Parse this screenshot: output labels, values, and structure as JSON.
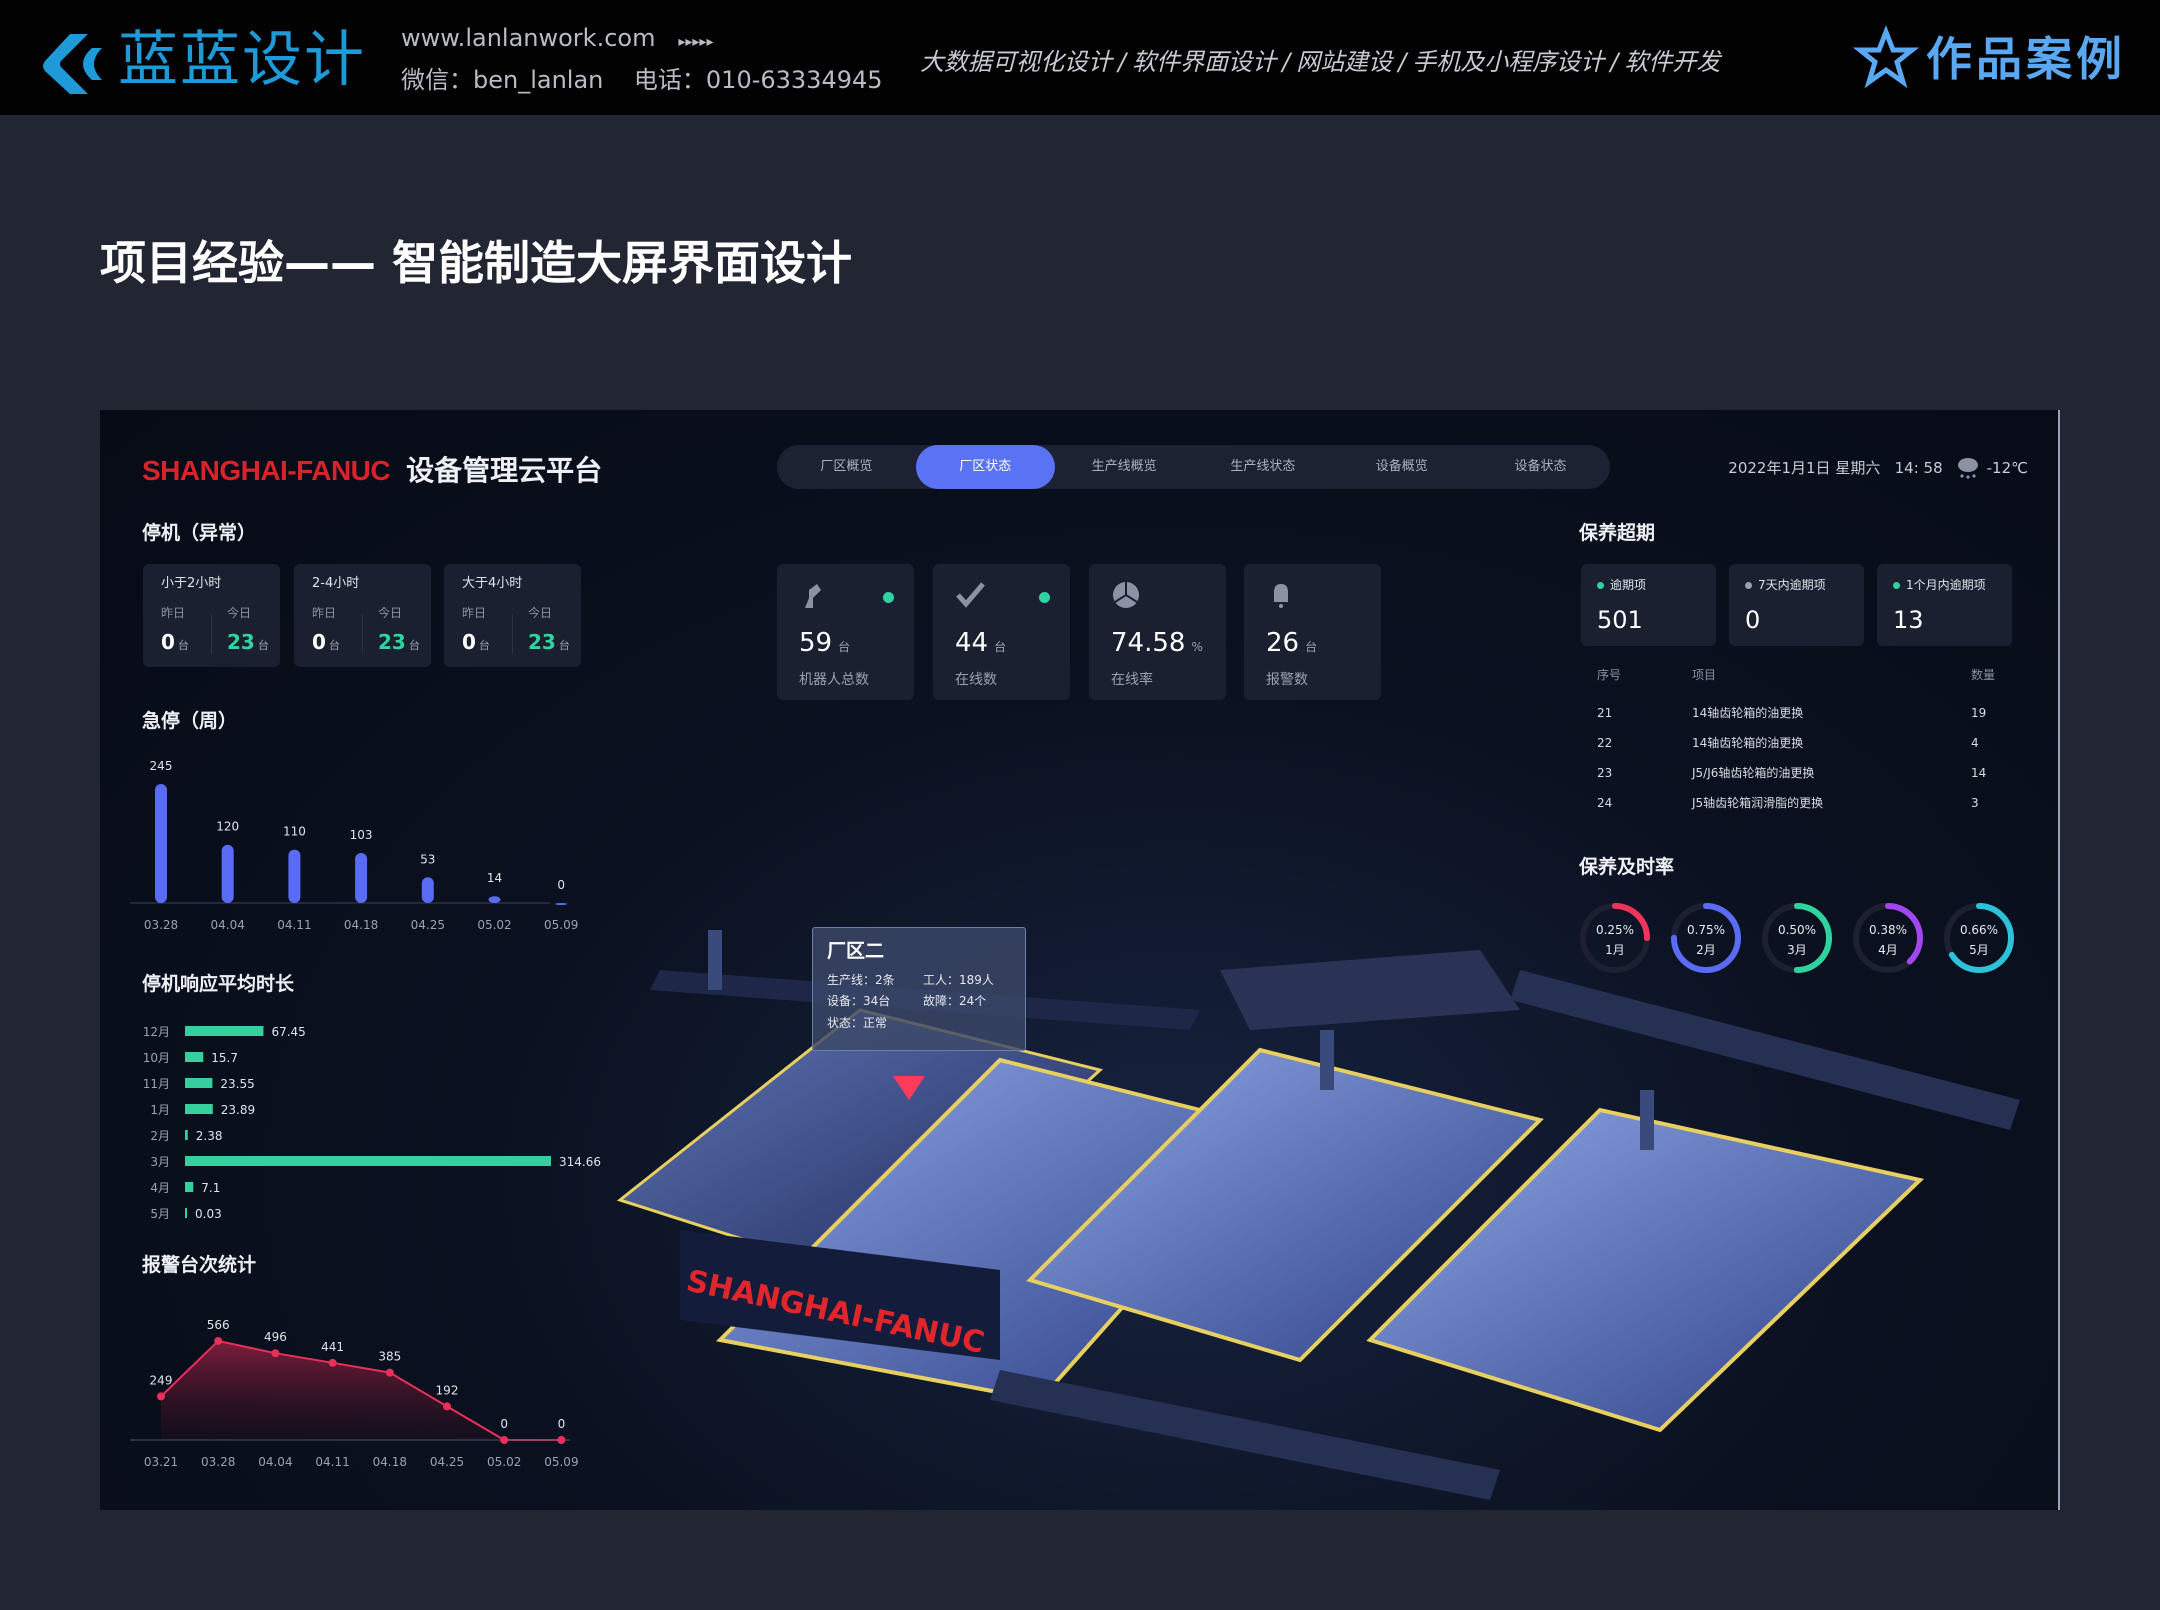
{
  "topbar": {
    "logo_text": "蓝蓝设计",
    "website": "www.lanlanwork.com",
    "arrows": "▸▸▸▸▸",
    "wechat": "微信：ben_lanlan",
    "phone": "电话：010-63334945",
    "services": [
      "大数据可视化设计",
      "/",
      "软件界面设计",
      "/",
      "网站建设",
      "/",
      "手机及小程序设计",
      "/",
      "软件开发"
    ],
    "works_label": "作品案例",
    "accent": "#1f9ad8"
  },
  "page_title": "项目经验—— 智能制造大屏界面设计",
  "dashboard": {
    "brand": "SHANGHAI-FANUC",
    "brand_cn": "设备管理云平台",
    "tabs": [
      "厂区概览",
      "厂区状态",
      "生产线概览",
      "生产线状态",
      "设备概览",
      "设备状态"
    ],
    "active_tab": "厂区状态",
    "datetime": "2022年1月1日 星期六   14: 58",
    "weather_icon": "snow-cloud-icon",
    "temperature": "-12℃",
    "downtime": {
      "title": "停机（异常）",
      "cards": [
        {
          "title": "小于2小时",
          "yesterday_label": "昨日",
          "today_label": "今日",
          "yesterday": "0",
          "today": "23",
          "unit": "台"
        },
        {
          "title": "2-4小时",
          "yesterday_label": "昨日",
          "today_label": "今日",
          "yesterday": "0",
          "today": "23",
          "unit": "台"
        },
        {
          "title": "大于4小时",
          "yesterday_label": "昨日",
          "today_label": "今日",
          "yesterday": "0",
          "today": "23",
          "unit": "台"
        }
      ]
    },
    "kpis": [
      {
        "icon": "robot-arm-icon",
        "value": "59",
        "unit": "台",
        "label": "机器人总数",
        "dot": true
      },
      {
        "icon": "check-icon",
        "value": "44",
        "unit": "台",
        "label": "在线数",
        "dot": true
      },
      {
        "icon": "pie-icon",
        "value": "74.58",
        "unit": "%",
        "label": "在线率",
        "dot": false
      },
      {
        "icon": "bell-icon",
        "value": "26",
        "unit": "台",
        "label": "报警数",
        "dot": false
      }
    ],
    "overdue": {
      "title": "保养超期",
      "cards": [
        {
          "label": "逾期项",
          "value": "501",
          "dot_color": "#2fd3a0"
        },
        {
          "label": "7天内逾期项",
          "value": "0",
          "dot_color": "#9aa2b2"
        },
        {
          "label": "1个月内逾期项",
          "value": "13",
          "dot_color": "#2fd3a0"
        }
      ],
      "table": {
        "headers": [
          "序号",
          "项目",
          "数量"
        ],
        "rows": [
          [
            "21",
            "14轴齿轮箱的油更换",
            "19"
          ],
          [
            "22",
            "14轴齿轮箱的油更换",
            "4"
          ],
          [
            "23",
            "J5/J6轴齿轮箱的油更换",
            "14"
          ],
          [
            "24",
            "J5轴齿轮箱润滑脂的更换",
            "3"
          ]
        ]
      }
    },
    "tooltip": {
      "title": "厂区二",
      "lines": [
        "生产线：2条",
        "工人：189人",
        "设备：34台",
        "故障：24个",
        "状态：正常"
      ]
    },
    "scene_logo": "SHANGHAI-FANUC"
  },
  "chart_data": [
    {
      "type": "bar",
      "title": "急停（周）",
      "categories": [
        "03.28",
        "04.04",
        "04.11",
        "04.18",
        "04.25",
        "05.02",
        "05.09"
      ],
      "values": [
        245,
        120,
        110,
        103,
        53,
        14,
        0
      ],
      "color": "#5a6cf5"
    },
    {
      "type": "bar",
      "orientation": "horizontal",
      "title": "停机响应平均时长",
      "categories": [
        "12月",
        "10月",
        "11月",
        "1月",
        "2月",
        "3月",
        "4月",
        "5月"
      ],
      "values": [
        67.45,
        15.7,
        23.55,
        23.89,
        2.38,
        314.66,
        7.1,
        0.03
      ],
      "color": "#36cf9e"
    },
    {
      "type": "area",
      "title": "报警台次统计",
      "categories": [
        "03.21",
        "03.28",
        "04.04",
        "04.11",
        "04.18",
        "04.25",
        "05.02",
        "05.09"
      ],
      "values": [
        249,
        566,
        496,
        441,
        385,
        192,
        0,
        0
      ],
      "color": "#e8305a"
    },
    {
      "type": "pie",
      "title": "保养及时率",
      "rings": [
        {
          "label": "1月",
          "value": "0.25%",
          "fraction": 0.25,
          "color": "#f0335a"
        },
        {
          "label": "2月",
          "value": "0.75%",
          "fraction": 0.75,
          "color": "#5a6cf5"
        },
        {
          "label": "3月",
          "value": "0.50%",
          "fraction": 0.5,
          "color": "#2fd3a0"
        },
        {
          "label": "4月",
          "value": "0.38%",
          "fraction": 0.38,
          "color": "#a146f0"
        },
        {
          "label": "5月",
          "value": "0.66%",
          "fraction": 0.66,
          "color": "#2cc3d8"
        }
      ]
    }
  ]
}
